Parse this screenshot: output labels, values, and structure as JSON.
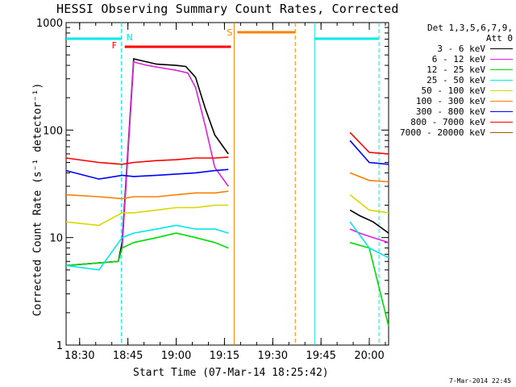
{
  "chart_data": {
    "type": "line",
    "title": "HESSI Observing Summary Count Rates, Corrected",
    "xlabel": "Start Time (07-Mar-14 18:25:42)",
    "ylabel": "Corrected Count Rate (s⁻¹ detector⁻¹)",
    "y_scale": "log",
    "ylim": [
      1,
      1000
    ],
    "xlim_minutes": [
      18.43,
      20.1
    ],
    "x_ticks": [
      "18:30",
      "18:45",
      "19:00",
      "19:15",
      "19:30",
      "19:45",
      "20:00"
    ],
    "y_ticks": [
      "1",
      "10",
      "100",
      "1000"
    ],
    "legend_header": [
      "Det 1,3,5,6,7,9,",
      "Att 0"
    ],
    "series": [
      {
        "name": "3 - 6 keV",
        "color": "#000000",
        "values": [
          [
            18.43,
            5.5
          ],
          [
            18.7,
            6.0
          ],
          [
            18.72,
            9
          ],
          [
            18.78,
            460
          ],
          [
            18.85,
            430
          ],
          [
            18.9,
            410
          ],
          [
            19.0,
            400
          ],
          [
            19.05,
            390
          ],
          [
            19.1,
            310
          ],
          [
            19.15,
            160
          ],
          [
            19.2,
            90
          ],
          [
            19.27,
            60
          ],
          [
            19.9,
            18
          ],
          [
            19.95,
            16
          ],
          [
            20.02,
            14
          ],
          [
            20.1,
            11
          ]
        ]
      },
      {
        "name": "6 - 12 keV",
        "color": "#e020e0",
        "values": [
          [
            18.43,
            5.5
          ],
          [
            18.7,
            6.0
          ],
          [
            18.72,
            8
          ],
          [
            18.78,
            430
          ],
          [
            18.85,
            400
          ],
          [
            18.92,
            380
          ],
          [
            19.0,
            360
          ],
          [
            19.06,
            340
          ],
          [
            19.1,
            250
          ],
          [
            19.15,
            110
          ],
          [
            19.2,
            45
          ],
          [
            19.27,
            30
          ],
          [
            19.9,
            12
          ],
          [
            19.95,
            11
          ],
          [
            20.02,
            10
          ],
          [
            20.1,
            9
          ]
        ]
      },
      {
        "name": "12 - 25 keV",
        "color": "#00dd00",
        "values": [
          [
            18.43,
            5.5
          ],
          [
            18.7,
            6.0
          ],
          [
            18.72,
            8
          ],
          [
            18.78,
            9
          ],
          [
            18.9,
            10
          ],
          [
            19.0,
            11
          ],
          [
            19.1,
            10
          ],
          [
            19.2,
            9
          ],
          [
            19.27,
            8
          ],
          [
            19.9,
            9
          ],
          [
            20.0,
            8
          ],
          [
            20.1,
            1.5
          ]
        ]
      },
      {
        "name": "25 - 50 keV",
        "color": "#00e8e8",
        "values": [
          [
            18.43,
            5.5
          ],
          [
            18.6,
            5.0
          ],
          [
            18.72,
            10
          ],
          [
            18.78,
            11
          ],
          [
            18.9,
            12
          ],
          [
            19.0,
            13
          ],
          [
            19.1,
            12
          ],
          [
            19.2,
            12
          ],
          [
            19.27,
            11
          ],
          [
            19.9,
            14
          ],
          [
            20.0,
            8
          ],
          [
            20.1,
            6.5
          ]
        ]
      },
      {
        "name": "50 - 100 keV",
        "color": "#d8d800",
        "values": [
          [
            18.43,
            14
          ],
          [
            18.6,
            13
          ],
          [
            18.72,
            17
          ],
          [
            18.78,
            17
          ],
          [
            18.9,
            18
          ],
          [
            19.0,
            19
          ],
          [
            19.1,
            19
          ],
          [
            19.2,
            20
          ],
          [
            19.27,
            20
          ],
          [
            19.9,
            25
          ],
          [
            20.0,
            18
          ],
          [
            20.1,
            17
          ]
        ]
      },
      {
        "name": "100 - 300 keV",
        "color": "#ff8000",
        "values": [
          [
            18.43,
            25
          ],
          [
            18.6,
            24
          ],
          [
            18.72,
            23
          ],
          [
            18.78,
            24
          ],
          [
            18.9,
            24
          ],
          [
            19.0,
            25
          ],
          [
            19.1,
            26
          ],
          [
            19.2,
            26
          ],
          [
            19.27,
            27
          ],
          [
            19.9,
            40
          ],
          [
            20.0,
            34
          ],
          [
            20.1,
            33
          ]
        ]
      },
      {
        "name": "300 - 800 keV",
        "color": "#0000ff",
        "values": [
          [
            18.43,
            42
          ],
          [
            18.6,
            35
          ],
          [
            18.72,
            38
          ],
          [
            18.78,
            37
          ],
          [
            18.9,
            38
          ],
          [
            19.0,
            39
          ],
          [
            19.1,
            40
          ],
          [
            19.2,
            42
          ],
          [
            19.27,
            43
          ],
          [
            19.9,
            80
          ],
          [
            20.0,
            50
          ],
          [
            20.1,
            48
          ]
        ]
      },
      {
        "name": "800 - 7000 keV",
        "color": "#ff0000",
        "values": [
          [
            18.43,
            55
          ],
          [
            18.6,
            50
          ],
          [
            18.72,
            48
          ],
          [
            18.78,
            50
          ],
          [
            18.9,
            52
          ],
          [
            19.0,
            53
          ],
          [
            19.1,
            55
          ],
          [
            19.2,
            55
          ],
          [
            19.27,
            56
          ],
          [
            19.9,
            95
          ],
          [
            20.0,
            62
          ],
          [
            20.1,
            60
          ]
        ]
      },
      {
        "name": "7000 - 20000 keV",
        "color": "#a05a00",
        "values": []
      }
    ],
    "annotations": [
      {
        "label": "F",
        "color": "#ff0000"
      },
      {
        "label": "N",
        "color": "#00e8e8"
      },
      {
        "label": "S",
        "color": "#ff8000"
      }
    ]
  },
  "footer": {
    "timestamp": "7-Mar-2014 22:45"
  }
}
